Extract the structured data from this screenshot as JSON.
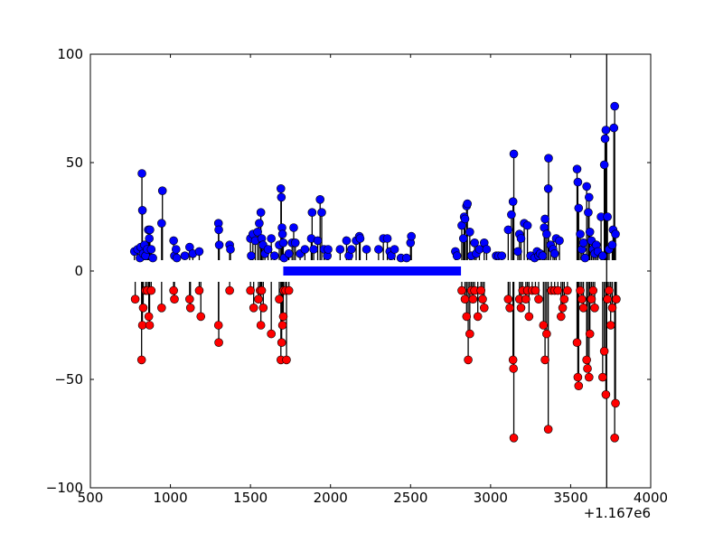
{
  "chart_data": {
    "type": "scatter",
    "title": "",
    "xlabel": "",
    "ylabel": "",
    "xlim": [
      500,
      4000
    ],
    "ylim": [
      -100,
      100
    ],
    "x_offset_label": "+1.167e6",
    "xticks": [
      "500",
      "1000",
      "1500",
      "2000",
      "2500",
      "3000",
      "3500",
      "4000"
    ],
    "yticks": [
      "100",
      "50",
      "0",
      "−50",
      "−100"
    ],
    "grid": false,
    "legend": "none",
    "colors": {
      "upper": "#0000ff",
      "lower": "#ff0000",
      "stem": "#000000",
      "band": "#0000ff"
    },
    "baseline_band": {
      "x": [
        1705,
        2815
      ],
      "y": 0
    },
    "vertical_line": {
      "x": 3725
    },
    "upper": [
      [
        775,
        9
      ],
      [
        795,
        10
      ],
      [
        810,
        6
      ],
      [
        815,
        11
      ],
      [
        822,
        45
      ],
      [
        825,
        28
      ],
      [
        830,
        8
      ],
      [
        838,
        12
      ],
      [
        845,
        7
      ],
      [
        855,
        10
      ],
      [
        862,
        19
      ],
      [
        868,
        15
      ],
      [
        872,
        19
      ],
      [
        880,
        10
      ],
      [
        890,
        6
      ],
      [
        945,
        22
      ],
      [
        950,
        37
      ],
      [
        1020,
        14
      ],
      [
        1025,
        7
      ],
      [
        1035,
        10
      ],
      [
        1040,
        6
      ],
      [
        1090,
        7
      ],
      [
        1120,
        11
      ],
      [
        1140,
        8
      ],
      [
        1180,
        9
      ],
      [
        1300,
        22
      ],
      [
        1302,
        19
      ],
      [
        1305,
        12
      ],
      [
        1370,
        12
      ],
      [
        1375,
        10
      ],
      [
        1500,
        15
      ],
      [
        1505,
        7
      ],
      [
        1515,
        17
      ],
      [
        1530,
        14
      ],
      [
        1545,
        18
      ],
      [
        1555,
        22
      ],
      [
        1565,
        27
      ],
      [
        1570,
        15
      ],
      [
        1578,
        12
      ],
      [
        1590,
        8
      ],
      [
        1610,
        10
      ],
      [
        1630,
        15
      ],
      [
        1650,
        7
      ],
      [
        1680,
        12
      ],
      [
        1690,
        38
      ],
      [
        1693,
        34
      ],
      [
        1697,
        20
      ],
      [
        1700,
        17
      ],
      [
        1705,
        13
      ],
      [
        1710,
        6
      ],
      [
        1740,
        8
      ],
      [
        1760,
        13
      ],
      [
        1770,
        20
      ],
      [
        1780,
        13
      ],
      [
        1810,
        8
      ],
      [
        1840,
        10
      ],
      [
        1880,
        15
      ],
      [
        1885,
        27
      ],
      [
        1895,
        10
      ],
      [
        1920,
        14
      ],
      [
        1935,
        33
      ],
      [
        1945,
        27
      ],
      [
        1960,
        10
      ],
      [
        1980,
        7
      ],
      [
        1985,
        10
      ],
      [
        2060,
        10
      ],
      [
        2100,
        14
      ],
      [
        2115,
        7
      ],
      [
        2130,
        10
      ],
      [
        2160,
        14
      ],
      [
        2180,
        16
      ],
      [
        2185,
        15
      ],
      [
        2225,
        10
      ],
      [
        2300,
        10
      ],
      [
        2330,
        15
      ],
      [
        2355,
        15
      ],
      [
        2370,
        9
      ],
      [
        2380,
        7
      ],
      [
        2400,
        10
      ],
      [
        2440,
        6
      ],
      [
        2475,
        6
      ],
      [
        2500,
        13
      ],
      [
        2505,
        16
      ],
      [
        2780,
        9
      ],
      [
        2790,
        7
      ],
      [
        2820,
        21
      ],
      [
        2830,
        15
      ],
      [
        2835,
        25
      ],
      [
        2840,
        24
      ],
      [
        2850,
        30
      ],
      [
        2855,
        31
      ],
      [
        2870,
        18
      ],
      [
        2880,
        7
      ],
      [
        2900,
        13
      ],
      [
        2910,
        8
      ],
      [
        2930,
        10
      ],
      [
        2960,
        13
      ],
      [
        2975,
        10
      ],
      [
        3035,
        7
      ],
      [
        3050,
        7
      ],
      [
        3070,
        7
      ],
      [
        3110,
        19
      ],
      [
        3130,
        26
      ],
      [
        3140,
        32
      ],
      [
        3145,
        54
      ],
      [
        3170,
        9
      ],
      [
        3180,
        17
      ],
      [
        3190,
        15
      ],
      [
        3210,
        22
      ],
      [
        3230,
        21
      ],
      [
        3250,
        7
      ],
      [
        3275,
        6
      ],
      [
        3290,
        9
      ],
      [
        3300,
        7
      ],
      [
        3310,
        8
      ],
      [
        3325,
        7
      ],
      [
        3335,
        20
      ],
      [
        3340,
        24
      ],
      [
        3350,
        17
      ],
      [
        3360,
        38
      ],
      [
        3362,
        52
      ],
      [
        3375,
        12
      ],
      [
        3390,
        10
      ],
      [
        3400,
        8
      ],
      [
        3410,
        15
      ],
      [
        3430,
        14
      ],
      [
        3540,
        47
      ],
      [
        3545,
        41
      ],
      [
        3550,
        29
      ],
      [
        3560,
        17
      ],
      [
        3570,
        10
      ],
      [
        3580,
        13
      ],
      [
        3590,
        6
      ],
      [
        3600,
        39
      ],
      [
        3610,
        27
      ],
      [
        3615,
        34
      ],
      [
        3620,
        18
      ],
      [
        3630,
        14
      ],
      [
        3640,
        10
      ],
      [
        3650,
        8
      ],
      [
        3660,
        12
      ],
      [
        3670,
        9
      ],
      [
        3690,
        25
      ],
      [
        3700,
        7
      ],
      [
        3710,
        49
      ],
      [
        3715,
        61
      ],
      [
        3720,
        65
      ],
      [
        3730,
        25
      ],
      [
        3740,
        10
      ],
      [
        3760,
        12
      ],
      [
        3765,
        19
      ],
      [
        3770,
        66
      ],
      [
        3775,
        76
      ],
      [
        3780,
        17
      ]
    ],
    "lower": [
      [
        780,
        -13
      ],
      [
        820,
        -41
      ],
      [
        825,
        -25
      ],
      [
        830,
        -17
      ],
      [
        845,
        -9
      ],
      [
        855,
        -9
      ],
      [
        865,
        -21
      ],
      [
        870,
        -25
      ],
      [
        880,
        -9
      ],
      [
        945,
        -17
      ],
      [
        1020,
        -9
      ],
      [
        1025,
        -13
      ],
      [
        1120,
        -13
      ],
      [
        1125,
        -17
      ],
      [
        1180,
        -9
      ],
      [
        1190,
        -21
      ],
      [
        1300,
        -25
      ],
      [
        1302,
        -33
      ],
      [
        1370,
        -9
      ],
      [
        1500,
        -9
      ],
      [
        1520,
        -17
      ],
      [
        1550,
        -13
      ],
      [
        1560,
        -9
      ],
      [
        1565,
        -25
      ],
      [
        1570,
        -9
      ],
      [
        1580,
        -17
      ],
      [
        1630,
        -29
      ],
      [
        1680,
        -13
      ],
      [
        1690,
        -41
      ],
      [
        1695,
        -33
      ],
      [
        1700,
        -25
      ],
      [
        1705,
        -21
      ],
      [
        1708,
        -9
      ],
      [
        1720,
        -9
      ],
      [
        1725,
        -41
      ],
      [
        1740,
        -9
      ],
      [
        2820,
        -9
      ],
      [
        2840,
        -13
      ],
      [
        2850,
        -21
      ],
      [
        2860,
        -41
      ],
      [
        2870,
        -29
      ],
      [
        2880,
        -9
      ],
      [
        2890,
        -13
      ],
      [
        2900,
        -9
      ],
      [
        2920,
        -21
      ],
      [
        2940,
        -9
      ],
      [
        2950,
        -13
      ],
      [
        2960,
        -17
      ],
      [
        3110,
        -13
      ],
      [
        3120,
        -17
      ],
      [
        3140,
        -41
      ],
      [
        3143,
        -45
      ],
      [
        3145,
        -77
      ],
      [
        3180,
        -13
      ],
      [
        3190,
        -17
      ],
      [
        3200,
        -9
      ],
      [
        3220,
        -13
      ],
      [
        3230,
        -9
      ],
      [
        3240,
        -21
      ],
      [
        3260,
        -9
      ],
      [
        3280,
        -9
      ],
      [
        3300,
        -13
      ],
      [
        3330,
        -25
      ],
      [
        3340,
        -41
      ],
      [
        3350,
        -29
      ],
      [
        3360,
        -73
      ],
      [
        3380,
        -9
      ],
      [
        3400,
        -9
      ],
      [
        3420,
        -9
      ],
      [
        3440,
        -21
      ],
      [
        3450,
        -17
      ],
      [
        3460,
        -13
      ],
      [
        3480,
        -9
      ],
      [
        3540,
        -33
      ],
      [
        3545,
        -49
      ],
      [
        3550,
        -53
      ],
      [
        3560,
        -9
      ],
      [
        3570,
        -13
      ],
      [
        3580,
        -17
      ],
      [
        3600,
        -41
      ],
      [
        3605,
        -45
      ],
      [
        3615,
        -49
      ],
      [
        3620,
        -29
      ],
      [
        3630,
        -13
      ],
      [
        3640,
        -9
      ],
      [
        3650,
        -17
      ],
      [
        3700,
        -49
      ],
      [
        3710,
        -37
      ],
      [
        3720,
        -57
      ],
      [
        3730,
        -13
      ],
      [
        3740,
        -9
      ],
      [
        3750,
        -25
      ],
      [
        3760,
        -17
      ],
      [
        3775,
        -77
      ],
      [
        3780,
        -61
      ],
      [
        3785,
        -13
      ]
    ]
  }
}
